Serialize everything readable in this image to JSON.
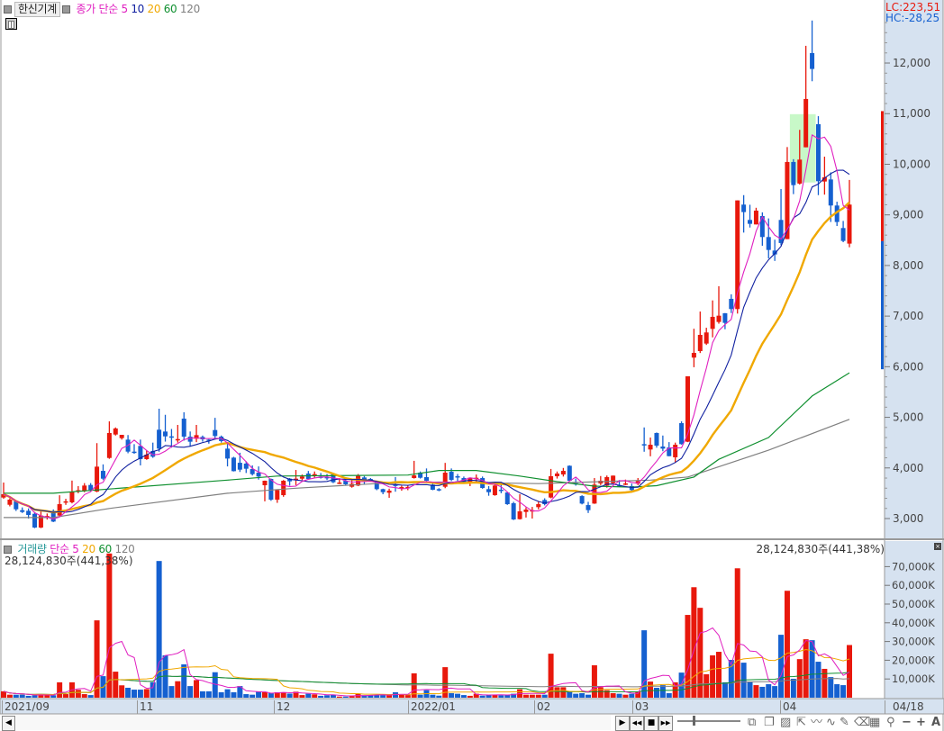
{
  "header": {
    "stock_name": "한신기계",
    "price_legend": {
      "title": "종가 단순",
      "ma": [
        "5",
        "10",
        "20",
        "60",
        "120"
      ]
    },
    "lc_label": "LC:223,51",
    "hc_label": "HC:-28,25"
  },
  "volume_legend": {
    "title": "거래량",
    "type": "단순",
    "ma": [
      "5",
      "20",
      "60",
      "120"
    ]
  },
  "volume_readout_left": "28,124,830주(441,38%)",
  "volume_readout_right": "28,124,830주(441,38%)",
  "colors": {
    "up": "#e8180c",
    "down": "#1560d0",
    "ma5": "#e020c0",
    "ma10": "#1020a0",
    "ma20": "#f0a800",
    "ma60": "#109030",
    "ma120": "#808080",
    "axis_bg": "#d6e2f0",
    "highlight": "#c8f8c8"
  },
  "price_axis": {
    "ticks": [
      "3,000",
      "4,000",
      "5,000",
      "6,000",
      "7,000",
      "8,000",
      "9,000",
      "10,000",
      "11,000",
      "12,000"
    ]
  },
  "volume_axis": {
    "ticks": [
      "10,000K",
      "20,000K",
      "30,000K",
      "40,000K",
      "50,000K",
      "60,000K",
      "70,000K"
    ]
  },
  "date_axis": {
    "labels": [
      "2021/09",
      "11",
      "12",
      "2022/01",
      "02",
      "03",
      "04"
    ],
    "current": "04/18"
  },
  "toolbar": {
    "left_arrow": "◀",
    "play": "▶",
    "rewind": "◀◀",
    "stop": "■",
    "fast_forward": "▶▶",
    "font_button": "A",
    "zoom_out": "−",
    "zoom_in": "+"
  },
  "chart_data": {
    "type": "candlestick",
    "ohlc": [
      [
        3415,
        3711,
        3391,
        3480
      ],
      [
        3272,
        3400,
        3240,
        3373
      ],
      [
        3343,
        3360,
        3150,
        3183
      ],
      [
        3165,
        3220,
        3110,
        3130
      ],
      [
        3153,
        3200,
        3000,
        3071
      ],
      [
        3094,
        3130,
        2810,
        2822
      ],
      [
        2822,
        3140,
        2810,
        3059
      ],
      [
        3030,
        3100,
        2980,
        3050
      ],
      [
        3153,
        3180,
        2930,
        2940
      ],
      [
        3059,
        3460,
        3030,
        3284
      ],
      [
        3320,
        3390,
        3270,
        3340
      ],
      [
        3320,
        3750,
        3300,
        3533
      ],
      [
        3550,
        3640,
        3500,
        3560
      ],
      [
        3551,
        3700,
        3520,
        3652
      ],
      [
        3664,
        3700,
        3540,
        3563
      ],
      [
        3533,
        4490,
        3520,
        4025
      ],
      [
        3942,
        4070,
        3760,
        3788
      ],
      [
        4197,
        4920,
        4180,
        4690
      ],
      [
        4660,
        4800,
        4640,
        4780
      ],
      [
        4589,
        4650,
        4560,
        4654
      ],
      [
        4559,
        4650,
        4290,
        4322
      ],
      [
        4322,
        4470,
        4280,
        4310
      ],
      [
        4435,
        4560,
        4050,
        4174
      ],
      [
        4174,
        4340,
        4160,
        4263
      ],
      [
        4334,
        4500,
        4200,
        4221
      ],
      [
        4755,
        5170,
        4320,
        4381
      ],
      [
        4719,
        5050,
        4520,
        4624
      ],
      [
        4624,
        4770,
        4400,
        4610
      ],
      [
        4560,
        4850,
        4500,
        4570
      ],
      [
        4974,
        5100,
        4540,
        4618
      ],
      [
        4618,
        4720,
        4420,
        4518
      ],
      [
        4577,
        4850,
        4510,
        4648
      ],
      [
        4613,
        4640,
        4520,
        4565
      ],
      [
        4560,
        4570,
        4480,
        4550
      ],
      [
        4749,
        4990,
        4560,
        4630
      ],
      [
        4618,
        4640,
        4500,
        4530
      ],
      [
        4381,
        4490,
        4030,
        4185
      ],
      [
        4203,
        4220,
        3930,
        3936
      ],
      [
        4102,
        4300,
        3920,
        3966
      ],
      [
        4085,
        4130,
        3900,
        3984
      ],
      [
        3978,
        4050,
        3850,
        3877
      ],
      [
        3907,
        4030,
        3770,
        3830
      ],
      [
        3658,
        3750,
        3340,
        3747
      ],
      [
        3782,
        3790,
        3350,
        3373
      ],
      [
        3373,
        3570,
        3310,
        3563
      ],
      [
        3462,
        3760,
        3430,
        3747
      ],
      [
        3788,
        3800,
        3650,
        3735
      ],
      [
        3760,
        3960,
        3660,
        3788
      ],
      [
        3788,
        3870,
        3760,
        3830
      ],
      [
        3889,
        3940,
        3770,
        3782
      ],
      [
        3842,
        3930,
        3800,
        3877
      ],
      [
        3830,
        3900,
        3790,
        3820
      ],
      [
        3820,
        3880,
        3760,
        3810
      ],
      [
        3877,
        3890,
        3700,
        3717
      ],
      [
        3687,
        3800,
        3680,
        3711
      ],
      [
        3747,
        3800,
        3660,
        3676
      ],
      [
        3628,
        3770,
        3610,
        3687
      ],
      [
        3652,
        3880,
        3640,
        3848
      ],
      [
        3812,
        3840,
        3670,
        3723
      ],
      [
        3782,
        3800,
        3730,
        3747
      ],
      [
        3711,
        3740,
        3560,
        3581
      ],
      [
        3581,
        3590,
        3480,
        3521
      ],
      [
        3509,
        3590,
        3410,
        3551
      ],
      [
        3670,
        3820,
        3530,
        3660
      ],
      [
        3593,
        3650,
        3550,
        3622
      ],
      [
        3620,
        3650,
        3560,
        3625
      ],
      [
        3800,
        4140,
        3790,
        3853
      ],
      [
        3907,
        3930,
        3790,
        3806
      ],
      [
        3818,
        3990,
        3740,
        3747
      ],
      [
        3670,
        3700,
        3560,
        3569
      ],
      [
        3581,
        3600,
        3540,
        3571
      ],
      [
        3628,
        4100,
        3600,
        3907
      ],
      [
        3924,
        3990,
        3740,
        3765
      ],
      [
        3836,
        3880,
        3740,
        3830
      ],
      [
        3800,
        3830,
        3700,
        3723
      ],
      [
        3693,
        3810,
        3640,
        3806
      ],
      [
        3800,
        3870,
        3700,
        3806
      ],
      [
        3800,
        3830,
        3590,
        3604
      ],
      [
        3581,
        3640,
        3450,
        3521
      ],
      [
        3462,
        3680,
        3450,
        3652
      ],
      [
        3570,
        3680,
        3500,
        3560
      ],
      [
        3515,
        3520,
        3270,
        3284
      ],
      [
        3302,
        3330,
        2970,
        2982
      ],
      [
        2988,
        3480,
        2980,
        3142
      ],
      [
        3130,
        3220,
        3020,
        3177
      ],
      [
        3160,
        3230,
        3000,
        3165
      ],
      [
        3225,
        3330,
        3180,
        3284
      ],
      [
        3367,
        3400,
        3260,
        3284
      ],
      [
        3415,
        3980,
        3400,
        3836
      ],
      [
        3836,
        3930,
        3790,
        3889
      ],
      [
        3871,
        4000,
        3830,
        3942
      ],
      [
        4043,
        4050,
        3740,
        3747
      ],
      [
        3700,
        3790,
        3650,
        3690
      ],
      [
        3444,
        3460,
        3280,
        3296
      ],
      [
        3266,
        3330,
        3110,
        3166
      ],
      [
        3296,
        3800,
        3290,
        3670
      ],
      [
        3693,
        3840,
        3660,
        3747
      ],
      [
        3652,
        3850,
        3610,
        3818
      ],
      [
        3699,
        3850,
        3690,
        3848
      ],
      [
        3652,
        3760,
        3630,
        3645
      ],
      [
        3687,
        3770,
        3660,
        3693
      ],
      [
        3640,
        3690,
        3520,
        3563
      ],
      [
        3688,
        3800,
        3660,
        3741
      ],
      [
        4470,
        4800,
        4320,
        4460
      ],
      [
        4364,
        4600,
        4230,
        4458
      ],
      [
        4690,
        4700,
        4400,
        4441
      ],
      [
        4423,
        4640,
        4330,
        4381
      ],
      [
        4405,
        4510,
        4230,
        4233
      ],
      [
        4210,
        4500,
        4100,
        4458
      ],
      [
        4885,
        4920,
        4460,
        4470
      ],
      [
        4518,
        5810,
        4510,
        5810
      ],
      [
        6180,
        6750,
        5990,
        6273
      ],
      [
        6309,
        7090,
        6270,
        6629
      ],
      [
        6457,
        6770,
        6430,
        6677
      ],
      [
        6748,
        7310,
        6580,
        6985
      ],
      [
        6884,
        7590,
        6850,
        7008
      ],
      [
        7056,
        7060,
        6740,
        6866
      ],
      [
        7341,
        7430,
        7060,
        7139
      ],
      [
        7139,
        9286,
        7050,
        9286
      ],
      [
        9203,
        9390,
        8650,
        9055
      ],
      [
        8900,
        9200,
        8750,
        8823
      ],
      [
        8811,
        9140,
        8810,
        9084
      ],
      [
        8977,
        9050,
        8390,
        8562
      ],
      [
        8562,
        8930,
        8140,
        8307
      ],
      [
        8295,
        8510,
        8090,
        8218
      ],
      [
        8900,
        9510,
        8400,
        8444
      ],
      [
        8521,
        10340,
        8521,
        10045
      ],
      [
        10045,
        10100,
        9410,
        9588
      ],
      [
        9618,
        10680,
        9600,
        10092
      ],
      [
        10335,
        12340,
        10335,
        11290
      ],
      [
        12197,
        12840,
        11640,
        11883
      ],
      [
        10792,
        10950,
        9390,
        9665
      ],
      [
        9659,
        10150,
        9400,
        9742
      ],
      [
        9700,
        9840,
        8860,
        9185
      ],
      [
        9185,
        9260,
        8780,
        8859
      ],
      [
        8740,
        8880,
        8460,
        8485
      ],
      [
        8432,
        9690,
        8360,
        9203
      ]
    ],
    "volume_k": [
      3400,
      1600,
      1600,
      1600,
      1000,
      1300,
      1900,
      1300,
      1300,
      8200,
      1900,
      8200,
      4200,
      1900,
      1400,
      41300,
      11500,
      77000,
      13900,
      6600,
      5300,
      4300,
      4300,
      4600,
      8200,
      73000,
      22600,
      6200,
      8800,
      17800,
      6200,
      9400,
      3400,
      3400,
      13600,
      2900,
      4500,
      2900,
      6200,
      1900,
      1600,
      3200,
      2900,
      2400,
      2900,
      2900,
      2200,
      3200,
      1400,
      2100,
      1800,
      1000,
      1300,
      1600,
      600,
      600,
      800,
      2200,
      1300,
      1400,
      1400,
      1400,
      1300,
      2900,
      1900,
      1400,
      13000,
      1600,
      4000,
      1600,
      1100,
      16300,
      2400,
      2100,
      1400,
      1000,
      2100,
      1100,
      1600,
      1600,
      1300,
      1600,
      2100,
      4500,
      1600,
      1600,
      1600,
      1600,
      23500,
      5600,
      5600,
      3200,
      2100,
      2400,
      1600,
      17300,
      5600,
      4000,
      2400,
      2100,
      1600,
      2100,
      3200,
      36000,
      8600,
      5300,
      6700,
      2400,
      8200,
      13400,
      44200,
      59000,
      48000,
      12500,
      22600,
      24500,
      8200,
      20200,
      69100,
      18700,
      8600,
      6700,
      5800,
      7200,
      6200,
      33600,
      57100,
      10100,
      20600,
      31200,
      30700,
      19200,
      15400,
      11000,
      7200,
      6700,
      28125
    ],
    "ma60_points": [
      [
        0,
        3500
      ],
      [
        8,
        3500
      ],
      [
        36,
        3760
      ],
      [
        44,
        3840
      ],
      [
        65,
        3860
      ],
      [
        70,
        3950
      ],
      [
        76,
        3950
      ],
      [
        83,
        3840
      ],
      [
        89,
        3730
      ],
      [
        95,
        3640
      ],
      [
        101,
        3620
      ],
      [
        105,
        3650
      ],
      [
        111,
        3820
      ],
      [
        115,
        4170
      ],
      [
        123,
        4600
      ],
      [
        130,
        5420
      ],
      [
        136,
        5880
      ]
    ],
    "ma120_points": [
      [
        0,
        3020
      ],
      [
        8,
        3020
      ],
      [
        17,
        3200
      ],
      [
        36,
        3500
      ],
      [
        47,
        3600
      ],
      [
        60,
        3690
      ],
      [
        70,
        3720
      ],
      [
        86,
        3690
      ],
      [
        104,
        3760
      ],
      [
        110,
        3820
      ],
      [
        123,
        4350
      ],
      [
        136,
        4960
      ]
    ],
    "highlight_range": {
      "from_index": 127,
      "to_index": 130,
      "high": 10990,
      "low": 9640
    },
    "axis_marker": {
      "high": 11050,
      "split": 8480,
      "low": 5950
    },
    "price_range": [
      2700,
      13100
    ],
    "volume_range_k": [
      0,
      80000
    ]
  }
}
